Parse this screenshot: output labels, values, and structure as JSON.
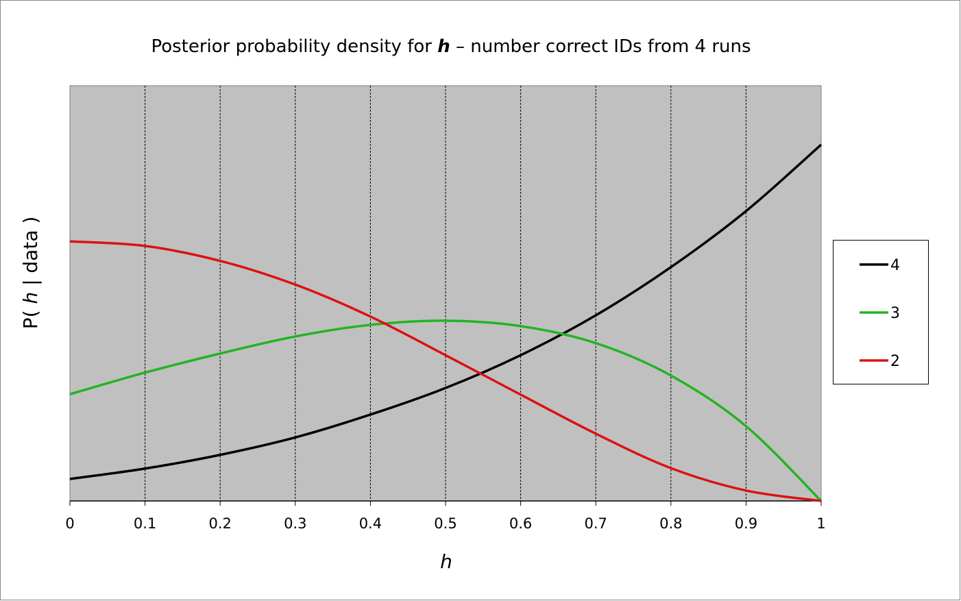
{
  "chart_data": {
    "type": "line",
    "title": [
      "Posterior probability density for ",
      "h",
      " – number correct IDs from 4 runs"
    ],
    "x_label": "h",
    "y_label": [
      "P( ",
      "h",
      " | data )"
    ],
    "x": [
      0,
      0.1,
      0.2,
      0.3,
      0.4,
      0.5,
      0.6,
      0.7,
      0.8,
      0.9,
      1
    ],
    "series": [
      {
        "name": "4",
        "color": "#000000",
        "values": [
          0.053,
          0.078,
          0.111,
          0.153,
          0.208,
          0.272,
          0.351,
          0.447,
          0.563,
          0.698,
          0.858
        ]
      },
      {
        "name": "3",
        "color": "#22b422",
        "values": [
          0.257,
          0.309,
          0.355,
          0.396,
          0.424,
          0.434,
          0.421,
          0.38,
          0.302,
          0.18,
          0
        ]
      },
      {
        "name": "2",
        "color": "#dd1111",
        "values": [
          0.625,
          0.614,
          0.578,
          0.521,
          0.444,
          0.351,
          0.256,
          0.162,
          0.079,
          0.025,
          0
        ]
      }
    ],
    "xlim": [
      0,
      1
    ],
    "ylim": [
      0,
      1
    ],
    "xticks": [
      0,
      0.1,
      0.2,
      0.3,
      0.4,
      0.5,
      0.6,
      0.7,
      0.8,
      0.9,
      1
    ],
    "grid": true,
    "legend": "right",
    "background": "#c0c0c0"
  }
}
